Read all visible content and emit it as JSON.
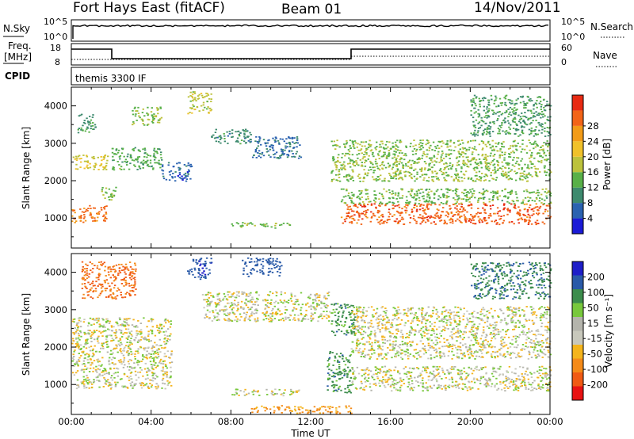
{
  "header": {
    "station": "Fort Hays East (fitACF)",
    "beam": "Beam 01",
    "date": "14/Nov/2011"
  },
  "left_labels": {
    "nsky": "N.Sky",
    "nsky_hi": "10^5",
    "nsky_lo": "10^0",
    "freq_a": "Freq.",
    "freq_b": "[MHz]",
    "freq_hi": "18",
    "freq_lo": "8",
    "cpid": "CPID"
  },
  "right_labels": {
    "nsearch": "N.Search",
    "nsearch_hi": "10^5",
    "nsearch_lo": "10^0",
    "nave_hi": "60",
    "nave_lo": "0",
    "nave": "Nave"
  },
  "cpid_text": "themis 3300 IF",
  "x_axis": {
    "label": "Time UT",
    "ticks": [
      "00:00",
      "04:00",
      "08:00",
      "12:00",
      "16:00",
      "20:00",
      "00:00"
    ]
  },
  "y_axis_label": "Slant Range [km]",
  "y_ticks": [
    "1000",
    "2000",
    "3000",
    "4000"
  ],
  "colors": {
    "power": [
      "#1b1bd6",
      "#2a62b0",
      "#3d8a6e",
      "#58b048",
      "#bcc23c",
      "#f0c12a",
      "#f29b18",
      "#f26418",
      "#e82a12"
    ],
    "velocity": [
      "#e81212",
      "#f05a14",
      "#f48a18",
      "#f4b41c",
      "#c8c8bc",
      "#b4b4ac",
      "#78c83c",
      "#3c8c4c",
      "#2a5aa8",
      "#1e1ec8"
    ]
  },
  "chart_data": [
    {
      "type": "heatmap",
      "title": "Power",
      "colorbar_label": "Power [dB]",
      "colorbar_ticks": [
        "4",
        "8",
        "12",
        "16",
        "20",
        "24",
        "28"
      ],
      "xlabel": "",
      "ylabel": "Slant Range [km]",
      "xlim": [
        0,
        24
      ],
      "ylim": [
        200,
        4500
      ],
      "zlim": [
        0,
        30
      ],
      "blobs": [
        {
          "t": [
            0.0,
            1.8
          ],
          "r": [
            900,
            1350
          ],
          "z": 26
        },
        {
          "t": [
            0.0,
            1.8
          ],
          "r": [
            2300,
            2700
          ],
          "z": 18
        },
        {
          "t": [
            0.3,
            1.2
          ],
          "r": [
            3300,
            3800
          ],
          "z": 11
        },
        {
          "t": [
            1.4,
            2.2
          ],
          "r": [
            1500,
            1850
          ],
          "z": 15
        },
        {
          "t": [
            2.0,
            4.5
          ],
          "r": [
            2300,
            2900
          ],
          "z": 13
        },
        {
          "t": [
            3.0,
            4.5
          ],
          "r": [
            3500,
            4000
          ],
          "z": 15
        },
        {
          "t": [
            4.5,
            6.0
          ],
          "r": [
            2000,
            2500
          ],
          "z": 7
        },
        {
          "t": [
            5.8,
            7.0
          ],
          "r": [
            3800,
            4400
          ],
          "z": 17
        },
        {
          "t": [
            7.0,
            9.0
          ],
          "r": [
            3000,
            3400
          ],
          "z": 10
        },
        {
          "t": [
            9.0,
            11.5
          ],
          "r": [
            2600,
            3200
          ],
          "z": 8
        },
        {
          "t": [
            8.0,
            11.0
          ],
          "r": [
            750,
            900
          ],
          "z": 14
        },
        {
          "t": [
            13.5,
            24.0
          ],
          "r": [
            850,
            1400
          ],
          "z": 27
        },
        {
          "t": [
            13.5,
            24.0
          ],
          "r": [
            1400,
            1800
          ],
          "z": 14
        },
        {
          "t": [
            13.0,
            24.0
          ],
          "r": [
            2000,
            3100
          ],
          "z": 15
        },
        {
          "t": [
            20.0,
            24.0
          ],
          "r": [
            3200,
            4300
          ],
          "z": 12
        }
      ]
    },
    {
      "type": "heatmap",
      "title": "Velocity",
      "colorbar_label": "Velocity [m s^-1]",
      "colorbar_ticks": [
        "200",
        "100",
        "50",
        "15",
        "-15",
        "-50",
        "-100",
        "-200"
      ],
      "xlabel": "Time UT",
      "ylabel": "Slant Range [km]",
      "xlim": [
        0,
        24
      ],
      "ylim": [
        200,
        4500
      ],
      "zlim": [
        -250,
        250
      ],
      "blobs": [
        {
          "t": [
            0.0,
            5.0
          ],
          "r": [
            900,
            2800
          ],
          "z": 0
        },
        {
          "t": [
            0.5,
            3.2
          ],
          "r": [
            3300,
            4300
          ],
          "z": -110
        },
        {
          "t": [
            5.8,
            7.0
          ],
          "r": [
            3800,
            4400
          ],
          "z": 180
        },
        {
          "t": [
            8.5,
            10.5
          ],
          "r": [
            3900,
            4400
          ],
          "z": 160
        },
        {
          "t": [
            6.5,
            13.0
          ],
          "r": [
            2700,
            3500
          ],
          "z": 0
        },
        {
          "t": [
            8.0,
            11.5
          ],
          "r": [
            720,
            900
          ],
          "z": 0
        },
        {
          "t": [
            9.0,
            14.0
          ],
          "r": [
            250,
            450
          ],
          "z": -60
        },
        {
          "t": [
            12.8,
            14.0
          ],
          "r": [
            800,
            1900
          ],
          "z": 70
        },
        {
          "t": [
            13.0,
            14.2
          ],
          "r": [
            2300,
            3200
          ],
          "z": 70
        },
        {
          "t": [
            14.0,
            24.0
          ],
          "r": [
            850,
            1500
          ],
          "z": 0
        },
        {
          "t": [
            14.0,
            24.0
          ],
          "r": [
            1700,
            3100
          ],
          "z": 0
        },
        {
          "t": [
            20.0,
            24.0
          ],
          "r": [
            3300,
            4300
          ],
          "z": 90
        }
      ]
    }
  ]
}
